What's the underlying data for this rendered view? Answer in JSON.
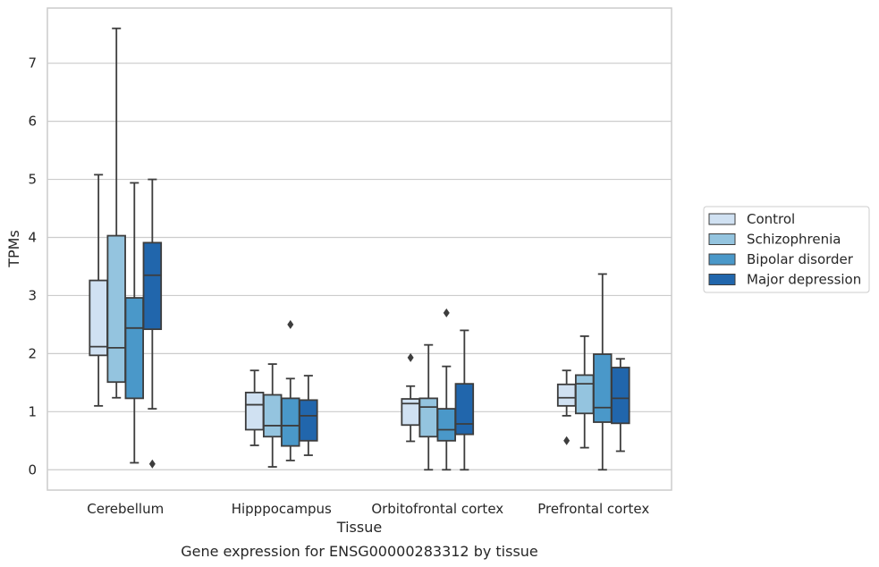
{
  "chart_data": {
    "type": "boxplot",
    "caption": "Gene expression for ENSG00000283312 by tissue",
    "xlabel": "Tissue",
    "ylabel": "TPMs",
    "ylim": [
      -0.35,
      7.95
    ],
    "yticks": [
      0,
      1,
      2,
      3,
      4,
      5,
      6,
      7
    ],
    "grid": true,
    "legend_position": "right",
    "categories": [
      "Cerebellum",
      "Hipppocampus",
      "Orbitofrontal cortex",
      "Prefrontal cortex"
    ],
    "series": [
      {
        "name": "Control",
        "color": "#d0e1f2",
        "boxes": [
          {
            "whislo": 1.1,
            "q1": 1.97,
            "med": 2.12,
            "q3": 3.26,
            "whishi": 5.08,
            "fliers": []
          },
          {
            "whislo": 0.42,
            "q1": 0.69,
            "med": 1.12,
            "q3": 1.33,
            "whishi": 1.71,
            "fliers": []
          },
          {
            "whislo": 0.49,
            "q1": 0.77,
            "med": 1.14,
            "q3": 1.22,
            "whishi": 1.44,
            "fliers": [
              1.93
            ]
          },
          {
            "whislo": 0.93,
            "q1": 1.1,
            "med": 1.24,
            "q3": 1.47,
            "whishi": 1.71,
            "fliers": [
              0.5
            ]
          }
        ]
      },
      {
        "name": "Schizophrenia",
        "color": "#94c4df",
        "boxes": [
          {
            "whislo": 1.24,
            "q1": 1.51,
            "med": 2.1,
            "q3": 4.03,
            "whishi": 7.6,
            "fliers": []
          },
          {
            "whislo": 0.05,
            "q1": 0.57,
            "med": 0.76,
            "q3": 1.29,
            "whishi": 1.82,
            "fliers": []
          },
          {
            "whislo": 0.0,
            "q1": 0.57,
            "med": 1.08,
            "q3": 1.23,
            "whishi": 2.15,
            "fliers": []
          },
          {
            "whislo": 0.38,
            "q1": 0.97,
            "med": 1.48,
            "q3": 1.63,
            "whishi": 2.3,
            "fliers": []
          }
        ]
      },
      {
        "name": "Bipolar disorder",
        "color": "#4a98c9",
        "boxes": [
          {
            "whislo": 0.12,
            "q1": 1.23,
            "med": 2.44,
            "q3": 2.96,
            "whishi": 4.94,
            "fliers": []
          },
          {
            "whislo": 0.16,
            "q1": 0.41,
            "med": 0.76,
            "q3": 1.23,
            "whishi": 1.57,
            "fliers": [
              2.5
            ]
          },
          {
            "whislo": 0.0,
            "q1": 0.5,
            "med": 0.69,
            "q3": 1.05,
            "whishi": 1.78,
            "fliers": [
              2.7
            ]
          },
          {
            "whislo": 0.0,
            "q1": 0.82,
            "med": 1.07,
            "q3": 1.99,
            "whishi": 3.37,
            "fliers": []
          }
        ]
      },
      {
        "name": "Major depression",
        "color": "#2166ac",
        "boxes": [
          {
            "whislo": 1.05,
            "q1": 2.42,
            "med": 3.35,
            "q3": 3.91,
            "whishi": 5.0,
            "fliers": [
              0.1
            ]
          },
          {
            "whislo": 0.25,
            "q1": 0.5,
            "med": 0.93,
            "q3": 1.2,
            "whishi": 1.62,
            "fliers": []
          },
          {
            "whislo": 0.0,
            "q1": 0.61,
            "med": 0.79,
            "q3": 1.48,
            "whishi": 2.4,
            "fliers": []
          },
          {
            "whislo": 0.32,
            "q1": 0.8,
            "med": 1.23,
            "q3": 1.76,
            "whishi": 1.91,
            "fliers": []
          }
        ]
      }
    ]
  }
}
